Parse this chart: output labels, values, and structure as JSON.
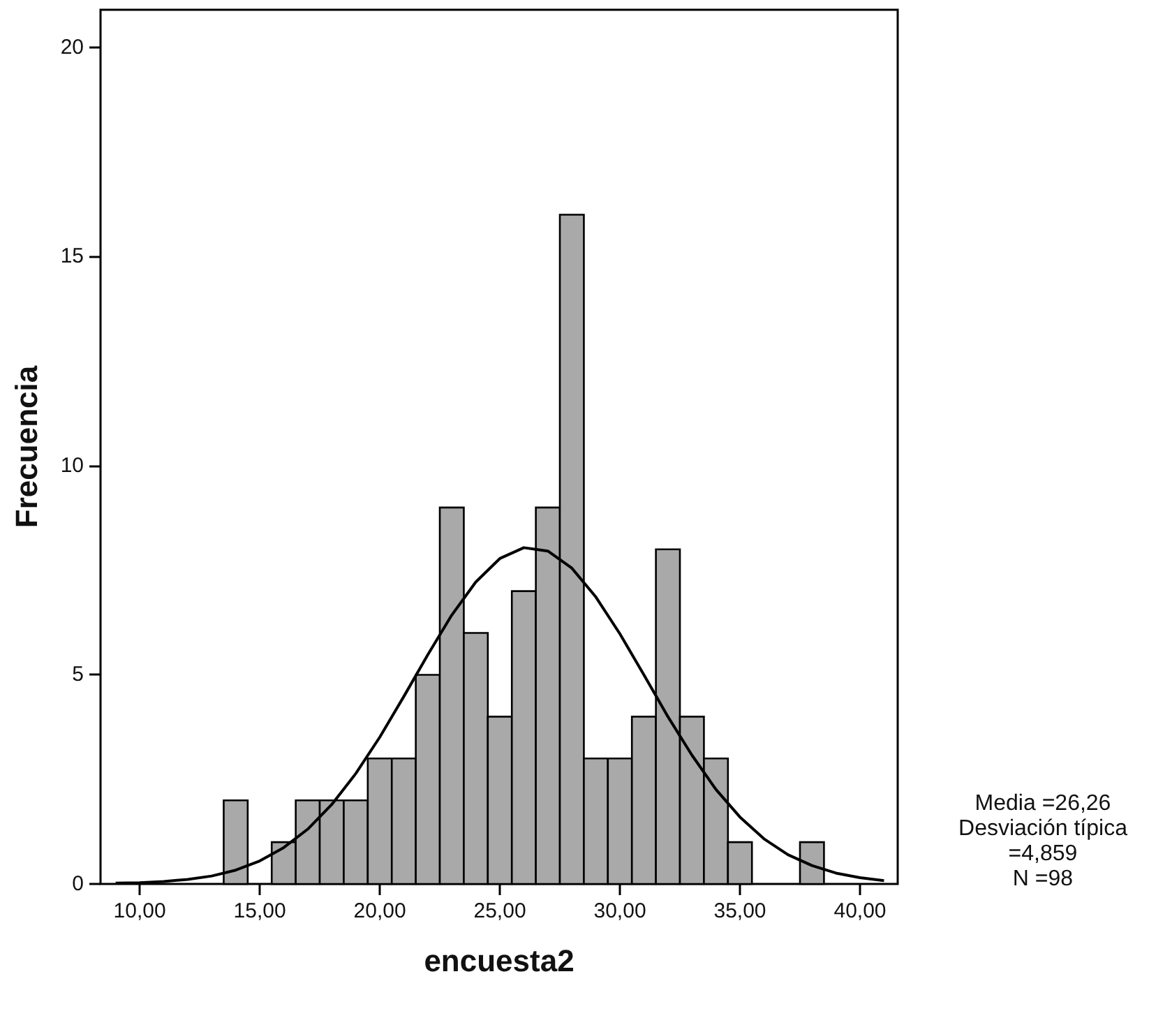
{
  "chart_data": {
    "type": "histogram",
    "xlabel": "encuesta2",
    "ylabel": "Frecuencia",
    "bins": [
      13.5,
      14.5,
      15.5,
      16.5,
      17.5,
      18.5,
      19.5,
      20.5,
      21.5,
      22.5,
      23.5,
      24.5,
      25.5,
      26.5,
      27.5,
      28.5,
      29.5,
      30.5,
      31.5,
      32.5,
      33.5,
      34.5,
      35.5,
      36.5,
      37.5,
      38.5
    ],
    "values": [
      2,
      0,
      1,
      2,
      2,
      2,
      3,
      3,
      5,
      9,
      6,
      4,
      7,
      9,
      16,
      3,
      3,
      4,
      8,
      4,
      3,
      1,
      0,
      0,
      1
    ],
    "color": "#a9a9a9",
    "series": [
      {
        "type": "line",
        "color": "#000000",
        "marker": "none",
        "x": [
          9,
          10,
          11,
          12,
          13,
          14,
          15,
          16,
          17,
          18,
          19,
          20,
          21,
          22,
          23,
          24,
          25,
          26,
          27,
          28,
          29,
          30,
          31,
          32,
          33,
          34,
          35,
          36,
          37,
          38,
          39,
          40,
          41
        ],
        "values": [
          0.02,
          0.03,
          0.06,
          0.11,
          0.19,
          0.33,
          0.55,
          0.87,
          1.31,
          1.9,
          2.64,
          3.51,
          4.48,
          5.48,
          6.43,
          7.22,
          7.78,
          8.04,
          7.96,
          7.55,
          6.86,
          5.98,
          5.0,
          4.0,
          3.08,
          2.26,
          1.6,
          1.08,
          0.7,
          0.44,
          0.26,
          0.15,
          0.08
        ]
      }
    ],
    "xlim": [
      8.37,
      41.57
    ],
    "xticks": [
      {
        "value": 10,
        "label": "10,00"
      },
      {
        "value": 15,
        "label": "15,00"
      },
      {
        "value": 20,
        "label": "20,00"
      },
      {
        "value": 25,
        "label": "25,00"
      },
      {
        "value": 30,
        "label": "30,00"
      },
      {
        "value": 35,
        "label": "35,00"
      },
      {
        "value": 40,
        "label": "40,00"
      }
    ],
    "ylim": [
      0,
      20.9
    ],
    "yticks": [
      0,
      5,
      10,
      15,
      20
    ],
    "grid": false,
    "annotations": [
      "Media =26,26",
      "Desviación típica =4,859",
      "N =98"
    ]
  }
}
